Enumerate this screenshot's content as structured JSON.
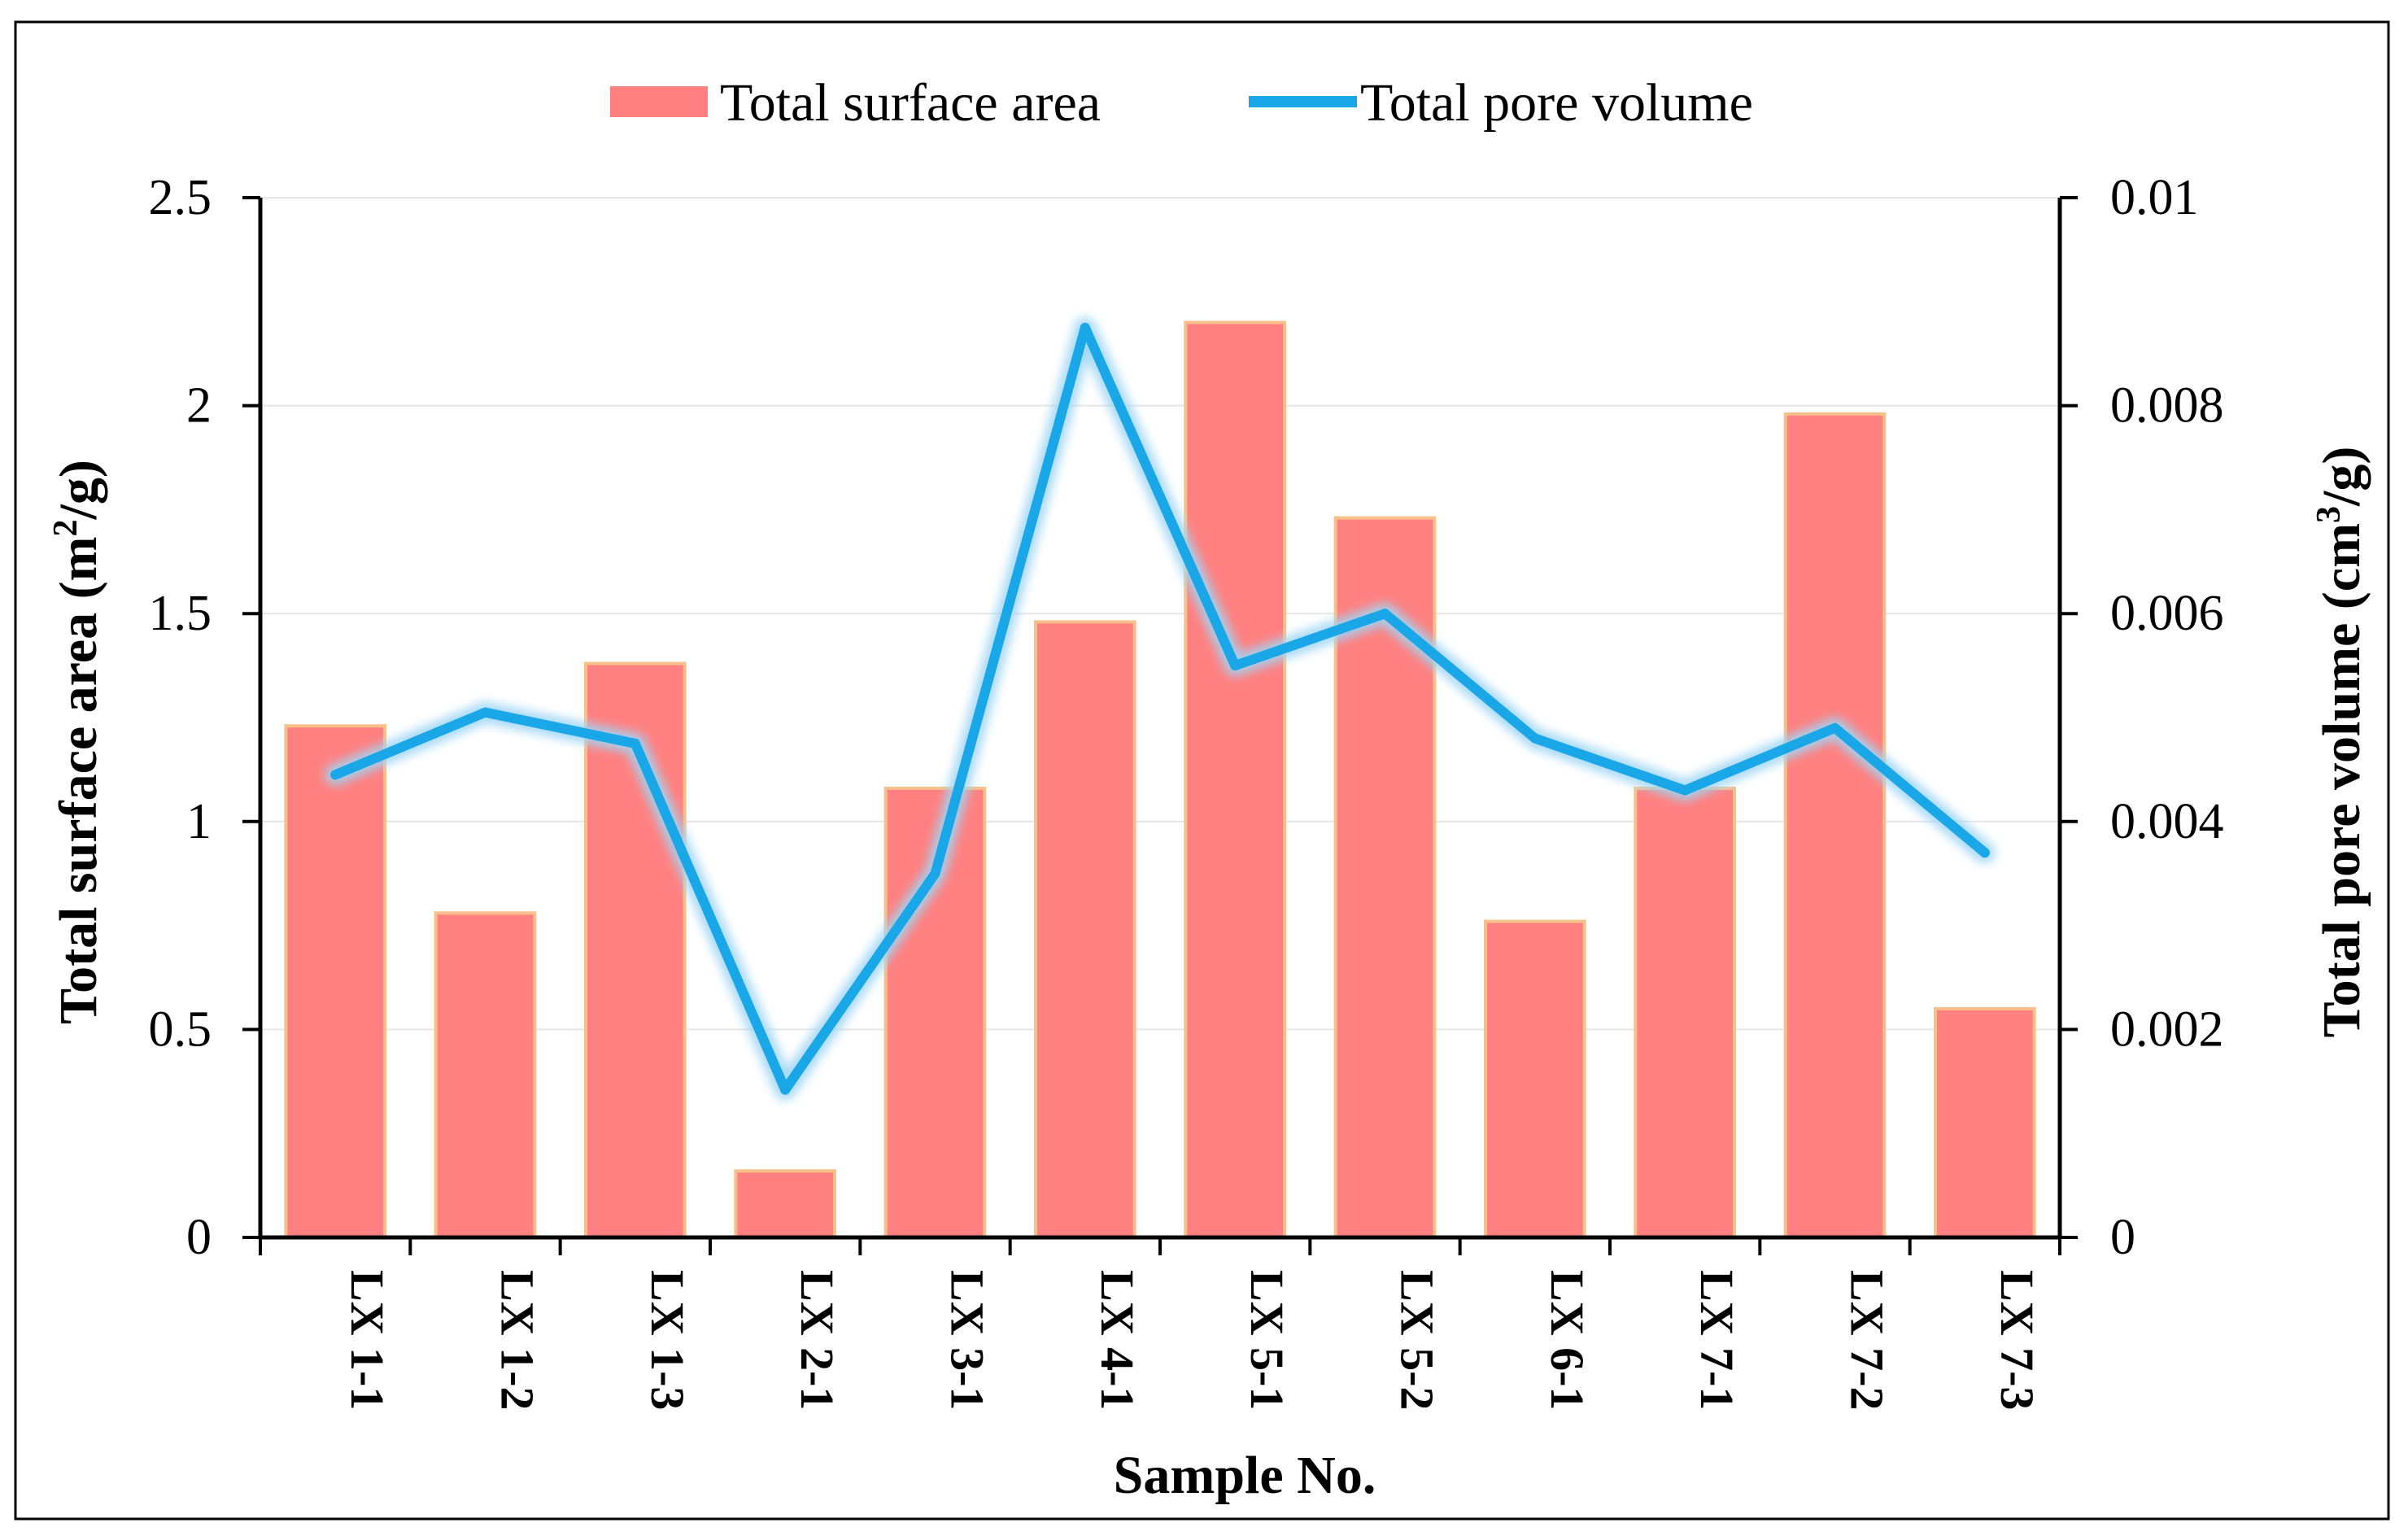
{
  "chart_data": {
    "type": "bar",
    "categories": [
      "LX 1-1",
      "LX 1-2",
      "LX 1-3",
      "LX 2-1",
      "LX 3-1",
      "LX 4-1",
      "LX 5-1",
      "LX 5-2",
      "LX 6-1",
      "LX 7-1",
      "LX 7-2",
      "LX 7-3"
    ],
    "series": [
      {
        "name": "Total surface area",
        "type": "bar",
        "axis": "left",
        "color": "#ff8080",
        "edge_color": "#f7c08a",
        "values": [
          1.23,
          0.78,
          1.38,
          0.16,
          1.08,
          1.48,
          2.2,
          1.73,
          0.76,
          1.08,
          1.98,
          0.55
        ]
      },
      {
        "name": "Total pore volume",
        "type": "line",
        "axis": "right",
        "color": "#1aa7e8",
        "glow_color": "#9fd6f5",
        "values": [
          0.00445,
          0.00505,
          0.00475,
          0.00142,
          0.0035,
          0.00875,
          0.0055,
          0.006,
          0.0048,
          0.0043,
          0.0049,
          0.0037
        ]
      }
    ],
    "y_left": {
      "label_pre": "Total surface area (m",
      "label_sup": "2",
      "label_post": "/g)",
      "lim": [
        0,
        2.5
      ],
      "ticks": [
        0,
        0.5,
        1,
        1.5,
        2,
        2.5
      ],
      "tick_labels": [
        "0",
        "0.5",
        "1",
        "1.5",
        "2",
        "2.5"
      ]
    },
    "y_right": {
      "label_pre": "Total pore volume (cm",
      "label_sup": "3",
      "label_post": "/g)",
      "lim": [
        0,
        0.01
      ],
      "ticks": [
        0,
        0.002,
        0.004,
        0.006,
        0.008,
        0.01
      ],
      "tick_labels": [
        "0",
        "0.002",
        "0.004",
        "0.006",
        "0.008",
        "0.01"
      ]
    },
    "xlabel": "Sample No.",
    "grid": true,
    "legend_position": "top-center"
  }
}
